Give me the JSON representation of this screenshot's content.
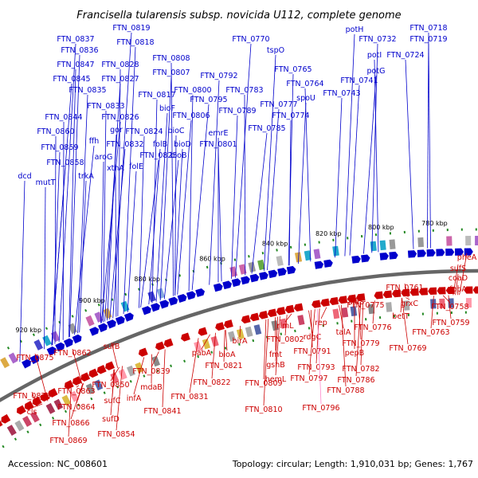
{
  "title": "Francisella tularensis subsp. novicida U112, complete genome",
  "footer": {
    "accession": "Accession: NC_008601",
    "summary": "Topology: circular; Length: 1,910,031 bp; Genes: 1,767"
  },
  "colors": {
    "forward": "#0000cc",
    "reverse": "#cc0000",
    "highlight": "#ff88cc",
    "backbone": "#666666",
    "tick": "#228822"
  },
  "ticks": [
    "780 kbp",
    "800 kbp",
    "820 kbp",
    "840 kbp",
    "860 kbp",
    "880 kbp",
    "900 kbp",
    "920 kbp"
  ],
  "forward_labels": [
    "FTN_0819",
    "FTN_0837",
    "FTN_0818",
    "FTN_0836",
    "FTN_0847",
    "FTN_0828",
    "FTN_0808",
    "FTN_0845",
    "FTN_0827",
    "FTN_0807",
    "FTN_0835",
    "FTN_0817",
    "FTN_0833",
    "FTN_0844",
    "FTN_0826",
    "FTN_0806",
    "bioF",
    "gor",
    "FTN_0824",
    "bioC",
    "FTN_0860",
    "ffh",
    "FTN_0832",
    "folB",
    "bioD",
    "FTN_0859",
    "aroG",
    "xthA",
    "FTN_0825",
    "bioB",
    "FTN_0858",
    "folE",
    "trkA",
    "dcd",
    "mutT",
    "FTN_0770",
    "tspO",
    "FTN_0792",
    "FTN_0765",
    "FTN_0800",
    "FTN_0783",
    "FTN_0764",
    "FTN_0795",
    "FTN_0777",
    "spoU",
    "FTN_0789",
    "FTN_0774",
    "emrE",
    "FTN_0801",
    "FTN_0785",
    "potH",
    "FTN_0732",
    "FTN_0718",
    "FTN_0719",
    "potI",
    "FTN_0724",
    "potG",
    "FTN_0741",
    "FTN_0743"
  ],
  "reverse_labels": [
    "pheA",
    "sufS",
    "coaD",
    "fopA",
    "FTN_0761",
    "FTN_0758",
    "grxC",
    "FTN_0759",
    "betT",
    "FTN_0763",
    "FTN_0769",
    "FTN_0775",
    "alaS",
    "FTN_0776",
    "rep",
    "talA",
    "FTN_0779",
    "pepB",
    "FTN_0782",
    "rlmL",
    "rdgC",
    "FTN_0791",
    "FTN_0802",
    "FTN_0793",
    "FTN_0786",
    "FTN_0788",
    "fmt",
    "gshB",
    "hemL",
    "FTN_0797",
    "FTN_0796",
    "birA",
    "FTN_0809",
    "FTN_0810",
    "pabA",
    "bioA",
    "FTN_0821",
    "FTN_0822",
    "FTN_0839",
    "FTN_0831",
    "mdaB",
    "FTN_0841",
    "sufB",
    "FTN_0850",
    "infA",
    "sufC",
    "sufD",
    "FTN_0854",
    "FTN_0862",
    "FTN_0875",
    "FTN_0863",
    "FTN_0876",
    "FTN_0864",
    "cls",
    "FTN_0866",
    "FTN_0869"
  ]
}
